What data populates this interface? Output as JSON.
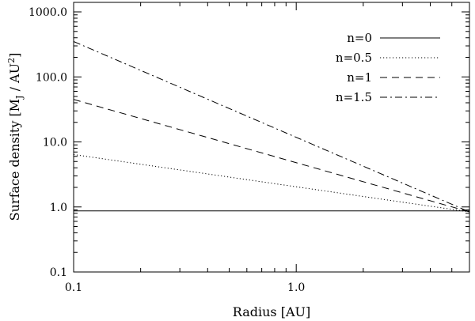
{
  "chart_data": {
    "type": "line",
    "xlabel": "Radius [AU]",
    "ylabel": {
      "main": "Surface density [M",
      "sub": "J",
      "mid": " / AU",
      "sup": "2",
      "end": "]"
    },
    "xscale": "log",
    "yscale": "log",
    "xlim": [
      0.1,
      6.0
    ],
    "ylim": [
      0.1,
      1400
    ],
    "grid": false,
    "legend_position": "top-right",
    "x_ticks": [
      {
        "value": 0.1,
        "label": "0.1"
      },
      {
        "value": 1.0,
        "label": "1.0"
      }
    ],
    "y_ticks": [
      {
        "value": 0.1,
        "label": "0.1"
      },
      {
        "value": 1,
        "label": "1.0"
      },
      {
        "value": 10,
        "label": "10.0"
      },
      {
        "value": 100,
        "label": "100.0"
      },
      {
        "value": 1000,
        "label": "1000.0"
      }
    ],
    "series": [
      {
        "name": "n=0",
        "dash": "solid",
        "x": [
          0.1,
          6.0
        ],
        "y": [
          0.87,
          0.87
        ]
      },
      {
        "name": "n=0.5",
        "dash": "dotted",
        "x": [
          0.1,
          6.0
        ],
        "y": [
          6.4,
          0.84
        ]
      },
      {
        "name": "n=1",
        "dash": "dashed",
        "x": [
          0.1,
          6.0
        ],
        "y": [
          45,
          0.84
        ]
      },
      {
        "name": "n=1.5",
        "dash": "dashdot",
        "x": [
          0.1,
          6.0
        ],
        "y": [
          350,
          0.84
        ]
      }
    ]
  }
}
